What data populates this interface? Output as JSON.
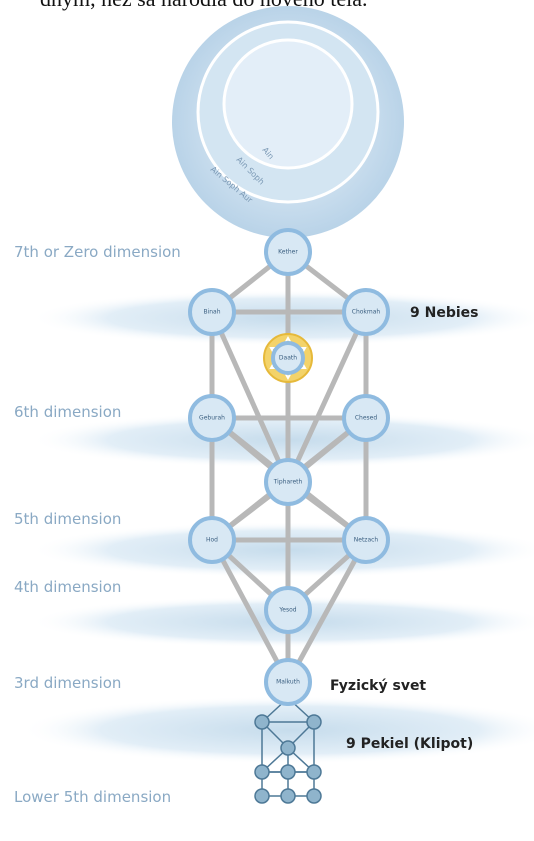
{
  "header": {
    "text": "dným, než sa narodia do nového tela."
  },
  "circles": [
    "Ain",
    "Ain Soph",
    "Ain Soph Aur"
  ],
  "dimensions": [
    "7th or Zero dimension",
    "6th dimension",
    "5th dimension",
    "4th dimension",
    "3rd dimension",
    "Lower 5th dimension"
  ],
  "labels": {
    "heavens": "9 Nebies",
    "physical": "Fyzický svet",
    "hells": "9 Pekiel (Klipot)"
  },
  "nodes": [
    {
      "label": "Kether"
    },
    {
      "label": "Binah"
    },
    {
      "label": "Chokmah"
    },
    {
      "label": "Daath"
    },
    {
      "label": "Geburah"
    },
    {
      "label": "Chesed"
    },
    {
      "label": "Tiphareth"
    },
    {
      "label": "Hod"
    },
    {
      "label": "Netzach"
    },
    {
      "label": "Yesod"
    },
    {
      "label": "Malkuth"
    }
  ]
}
